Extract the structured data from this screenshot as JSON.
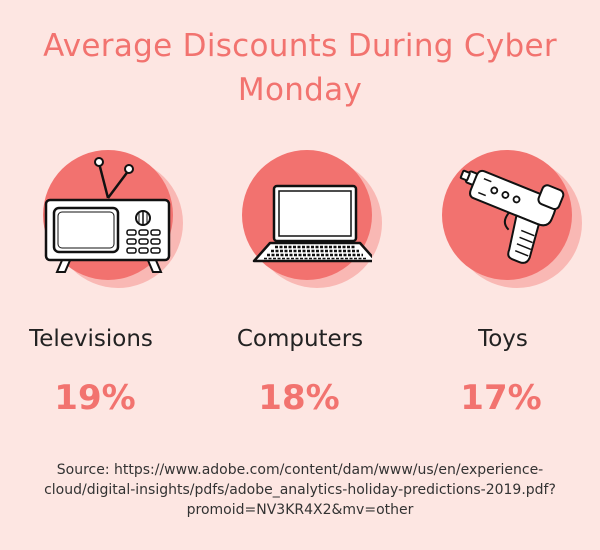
{
  "title_line1": "Average Discounts During Cyber",
  "title_line2": "Monday",
  "colors": {
    "background": "#fde6e2",
    "accent": "#f2736f",
    "circle": "#f2726f",
    "circle_shadow": "#f9b8b4"
  },
  "items": [
    {
      "label": "Televisions",
      "value": "19%",
      "icon": "television-icon"
    },
    {
      "label": "Computers",
      "value": "18%",
      "icon": "laptop-icon"
    },
    {
      "label": "Toys",
      "value": "17%",
      "icon": "toy-gun-icon"
    }
  ],
  "source_line1": "Source: https://www.adobe.com/content/dam/www/us/en/experience-",
  "source_line2": "cloud/digital-insights/pdfs/adobe_analytics-holiday-predictions-2019.pdf?",
  "source_line3": "promoid=NV3KR4X2&mv=other"
}
